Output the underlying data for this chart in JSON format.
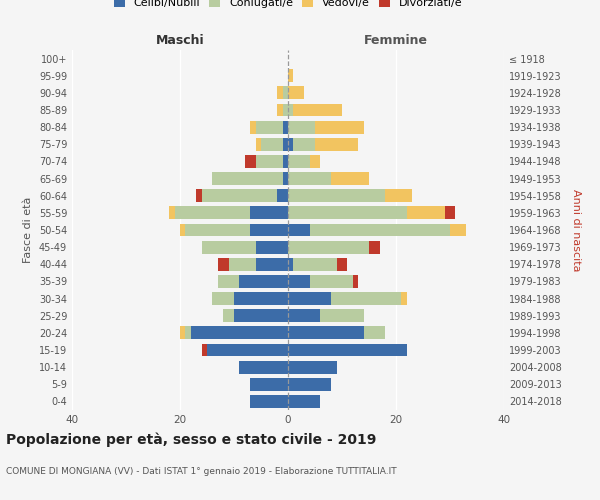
{
  "age_groups": [
    "0-4",
    "5-9",
    "10-14",
    "15-19",
    "20-24",
    "25-29",
    "30-34",
    "35-39",
    "40-44",
    "45-49",
    "50-54",
    "55-59",
    "60-64",
    "65-69",
    "70-74",
    "75-79",
    "80-84",
    "85-89",
    "90-94",
    "95-99",
    "100+"
  ],
  "birth_years": [
    "2014-2018",
    "2009-2013",
    "2004-2008",
    "1999-2003",
    "1994-1998",
    "1989-1993",
    "1984-1988",
    "1979-1983",
    "1974-1978",
    "1969-1973",
    "1964-1968",
    "1959-1963",
    "1954-1958",
    "1949-1953",
    "1944-1948",
    "1939-1943",
    "1934-1938",
    "1929-1933",
    "1924-1928",
    "1919-1923",
    "≤ 1918"
  ],
  "maschi": {
    "celibi": [
      7,
      7,
      9,
      15,
      18,
      10,
      10,
      9,
      6,
      6,
      7,
      7,
      2,
      1,
      1,
      1,
      1,
      0,
      0,
      0,
      0
    ],
    "coniugati": [
      0,
      0,
      0,
      0,
      1,
      2,
      4,
      4,
      5,
      10,
      12,
      14,
      14,
      13,
      5,
      4,
      5,
      1,
      1,
      0,
      0
    ],
    "vedovi": [
      0,
      0,
      0,
      0,
      1,
      0,
      0,
      0,
      0,
      0,
      1,
      1,
      0,
      0,
      0,
      1,
      1,
      1,
      1,
      0,
      0
    ],
    "divorziati": [
      0,
      0,
      0,
      1,
      0,
      0,
      0,
      0,
      2,
      0,
      0,
      0,
      1,
      0,
      2,
      0,
      0,
      0,
      0,
      0,
      0
    ]
  },
  "femmine": {
    "nubili": [
      6,
      8,
      9,
      22,
      14,
      6,
      8,
      4,
      1,
      0,
      4,
      0,
      0,
      0,
      0,
      1,
      0,
      0,
      0,
      0,
      0
    ],
    "coniugate": [
      0,
      0,
      0,
      0,
      4,
      8,
      13,
      8,
      8,
      15,
      26,
      22,
      18,
      8,
      4,
      4,
      5,
      1,
      0,
      0,
      0
    ],
    "vedove": [
      0,
      0,
      0,
      0,
      0,
      0,
      1,
      0,
      0,
      0,
      3,
      7,
      5,
      7,
      2,
      8,
      9,
      9,
      3,
      1,
      0
    ],
    "divorziate": [
      0,
      0,
      0,
      0,
      0,
      0,
      0,
      1,
      2,
      2,
      0,
      2,
      0,
      0,
      0,
      0,
      0,
      0,
      0,
      0,
      0
    ]
  },
  "colors": {
    "celibi_nubili": "#3c6ca8",
    "coniugati": "#b8cca0",
    "vedovi": "#f2c460",
    "divorziati": "#c0392b"
  },
  "xlim": 40,
  "title": "Popolazione per età, sesso e stato civile - 2019",
  "subtitle": "COMUNE DI MONGIANA (VV) - Dati ISTAT 1° gennaio 2019 - Elaborazione TUTTITALIA.IT",
  "xlabel_left": "Maschi",
  "xlabel_right": "Femmine",
  "ylabel_left": "Fasce di età",
  "ylabel_right": "Anni di nascita",
  "legend_labels": [
    "Celibi/Nubili",
    "Coniugati/e",
    "Vedovi/e",
    "Divorziati/e"
  ],
  "bg_color": "#f5f5f5"
}
